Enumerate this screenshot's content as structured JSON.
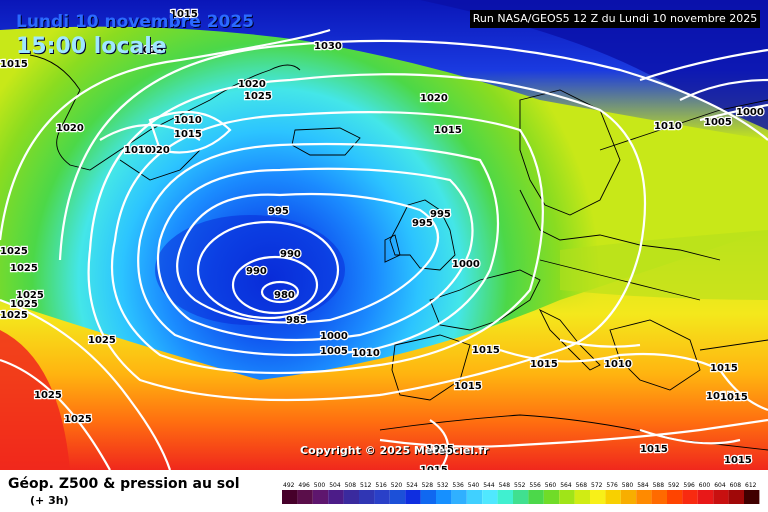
{
  "header": {
    "date_line": "Lundi 10 novembre 2025",
    "time_line": "15:00 locale",
    "run_info": "Run NASA/GEOS5 12 Z du Lundi 10 novembre 2025"
  },
  "copyright": "Copyright © 2025 Meteociel.fr",
  "footer": {
    "title": "Géop. Z500 & pression au sol",
    "subtitle": "(+ 3h)"
  },
  "colors": {
    "low_core": "#0a2cd8",
    "ocean_mid": "#22c8ff",
    "green": "#40c828",
    "yellow": "#f4e81c",
    "orange": "#ff9a10",
    "red": "#f0281c",
    "arctic": "#0a16b8"
  },
  "scale": {
    "labels": [
      "492",
      "496",
      "500",
      "504",
      "508",
      "512",
      "516",
      "520",
      "524",
      "528",
      "532",
      "536",
      "540",
      "544",
      "548",
      "552",
      "556",
      "560",
      "564",
      "568",
      "572",
      "576",
      "580",
      "584",
      "588",
      "592",
      "596",
      "600",
      "604",
      "608",
      "612"
    ],
    "colors": [
      "#46002a",
      "#5a0e4a",
      "#5e166e",
      "#4c1c88",
      "#3a2a9e",
      "#3036b4",
      "#2a40c8",
      "#1c50d8",
      "#0f2ee0",
      "#1068f0",
      "#1690ff",
      "#30b0ff",
      "#40d0ff",
      "#50e8ff",
      "#40f0d0",
      "#40e090",
      "#4cd84a",
      "#70dc28",
      "#a0e418",
      "#d0ec14",
      "#f8f018",
      "#f8d000",
      "#f8ae00",
      "#ff8a00",
      "#ff6a00",
      "#ff4400",
      "#f82a10",
      "#e81818",
      "#c81010",
      "#a00808",
      "#400000"
    ]
  },
  "isobar_labels": [
    {
      "text": "1015"
    },
    {
      "text": "1030"
    },
    {
      "text": "1015"
    },
    {
      "text": "1015"
    },
    {
      "text": "1020"
    },
    {
      "text": "1025"
    },
    {
      "text": "1020"
    },
    {
      "text": "1010"
    },
    {
      "text": "1015"
    },
    {
      "text": "1020"
    },
    {
      "text": "1010"
    },
    {
      "text": "1020"
    },
    {
      "text": "1015"
    },
    {
      "text": "1010"
    },
    {
      "text": "1005"
    },
    {
      "text": "1000"
    },
    {
      "text": "995"
    },
    {
      "text": "995"
    },
    {
      "text": "995"
    },
    {
      "text": "990"
    },
    {
      "text": "990"
    },
    {
      "text": "980"
    },
    {
      "text": "985"
    },
    {
      "text": "1000"
    },
    {
      "text": "1000"
    },
    {
      "text": "1005"
    },
    {
      "text": "1010"
    },
    {
      "text": "1015"
    },
    {
      "text": "1015"
    },
    {
      "text": "1015"
    },
    {
      "text": "1010"
    },
    {
      "text": "1015"
    },
    {
      "text": "1015"
    },
    {
      "text": "1015"
    },
    {
      "text": "1015"
    },
    {
      "text": "1015"
    },
    {
      "text": "1015"
    },
    {
      "text": "1015"
    },
    {
      "text": "1025"
    },
    {
      "text": "1025"
    },
    {
      "text": "1025"
    },
    {
      "text": "1025"
    },
    {
      "text": "1025"
    },
    {
      "text": "1025"
    },
    {
      "text": "1025"
    },
    {
      "text": "1025"
    }
  ]
}
